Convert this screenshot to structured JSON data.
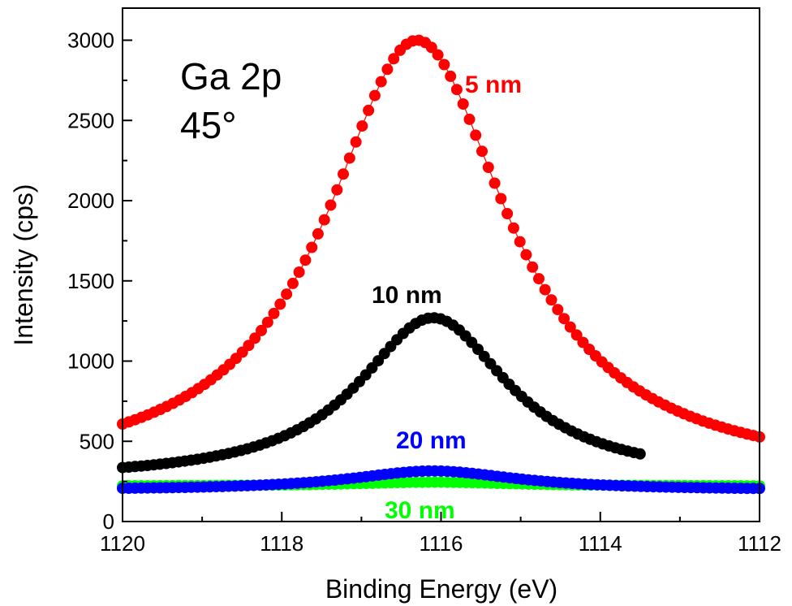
{
  "chart_data": {
    "type": "scatter",
    "title": "",
    "xlabel": "Binding Energy (eV)",
    "ylabel": "Intensity (cps)",
    "xlim": [
      1120,
      1112
    ],
    "ylim": [
      0,
      3200
    ],
    "x_reversed": true,
    "xticks": [
      1120,
      1118,
      1116,
      1114,
      1112
    ],
    "xtick_labels": [
      "1120",
      "1118",
      "1116",
      "1114",
      "1112"
    ],
    "yticks": [
      0,
      500,
      1000,
      1500,
      2000,
      2500,
      3000
    ],
    "ytick_labels": [
      "0",
      "500",
      "1000",
      "1500",
      "2000",
      "2500",
      "3000"
    ],
    "annotations": [
      "Ga 2p",
      "45°"
    ],
    "grid": false,
    "series": [
      {
        "name": "5 nm",
        "color": "#ff0000",
        "connected": true,
        "x_range": [
          1120,
          1112
        ],
        "points": 102,
        "peak_x": 1116.3,
        "peak_y": 3000,
        "base_y": 265,
        "width": 2.8
      },
      {
        "name": "10 nm",
        "color": "#000000",
        "connected": false,
        "x_range": [
          1120,
          1113.5
        ],
        "points": 84,
        "peak_x": 1116.1,
        "peak_y": 1270,
        "base_y": 255,
        "width": 2.3
      },
      {
        "name": "20 nm",
        "color": "#0000ff",
        "connected": false,
        "x_range": [
          1120,
          1112
        ],
        "points": 103,
        "peak_x": 1116.1,
        "peak_y": 315,
        "base_y": 195,
        "width": 2.6
      },
      {
        "name": "30 nm",
        "color": "#00ff00",
        "connected": false,
        "x_range": [
          1120,
          1112
        ],
        "points": 103,
        "peak_x": 1116.1,
        "peak_y": 245,
        "base_y": 220,
        "width": 2.6
      }
    ]
  }
}
